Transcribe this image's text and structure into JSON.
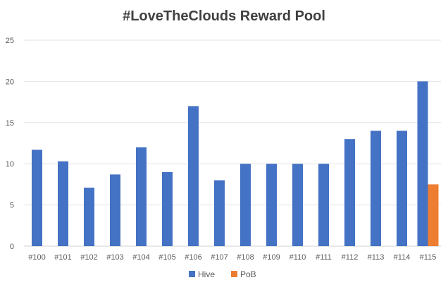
{
  "chart_data": {
    "type": "bar",
    "title": "#LoveTheClouds Reward Pool",
    "xlabel": "",
    "ylabel": "",
    "categories": [
      "#100",
      "#101",
      "#102",
      "#103",
      "#104",
      "#105",
      "#106",
      "#107",
      "#108",
      "#109",
      "#110",
      "#111",
      "#112",
      "#113",
      "#114",
      "#115"
    ],
    "series": [
      {
        "name": "Hive",
        "color": "#4472C4",
        "values": [
          11.7,
          10.3,
          7.1,
          8.7,
          12,
          9,
          17,
          8,
          10,
          10,
          10,
          10,
          13,
          14,
          14,
          20
        ]
      },
      {
        "name": "PoB",
        "color": "#ED7D31",
        "values": [
          0,
          0,
          0,
          0,
          0,
          0,
          0,
          0,
          0,
          0,
          0,
          0,
          0,
          0,
          0,
          7.5
        ]
      }
    ],
    "ylim": [
      0,
      25
    ],
    "yticks": [
      0,
      5,
      10,
      15,
      20,
      25
    ],
    "grid": true,
    "legend": "bottom"
  }
}
